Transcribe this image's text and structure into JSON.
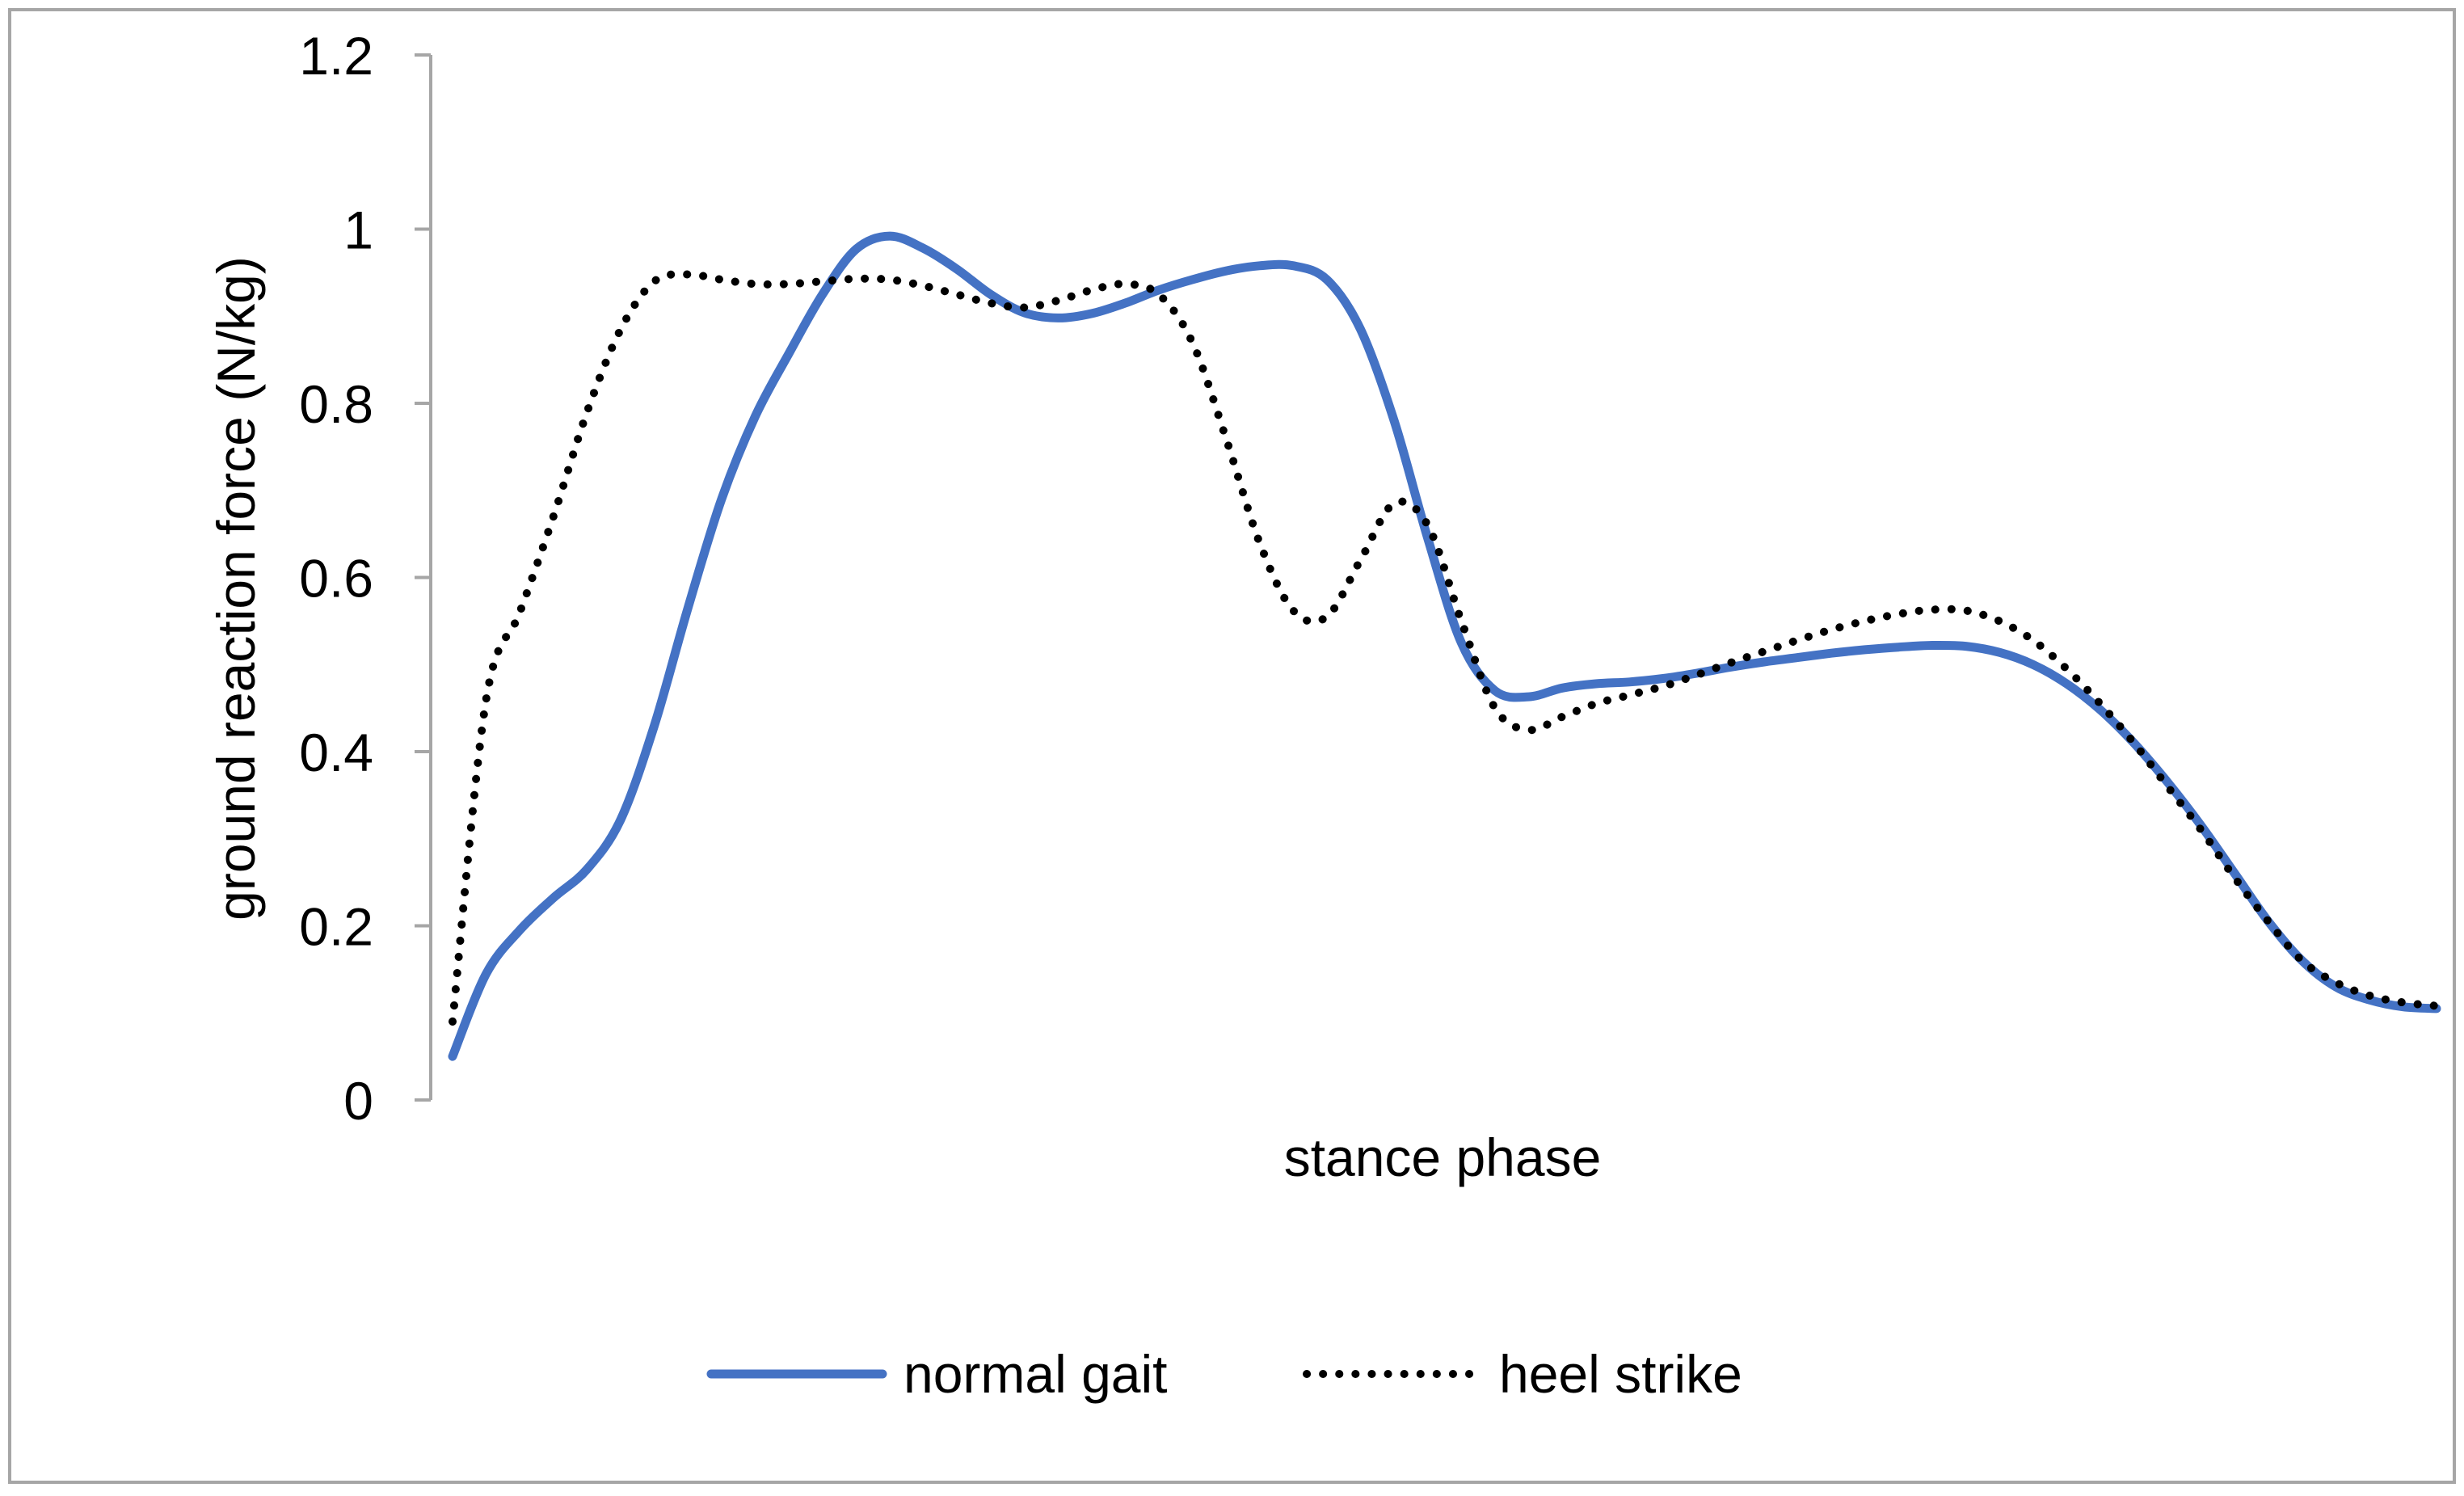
{
  "chart_data": {
    "type": "line",
    "title": "",
    "xlabel": "stance phase",
    "ylabel": "ground reaction force (N/kg)",
    "ylim": [
      0,
      1.2
    ],
    "yticks": [
      "0",
      "0.2",
      "0.4",
      "0.6",
      "0.8",
      "1",
      "1.2"
    ],
    "grid": false,
    "legend_position": "bottom",
    "x": [
      0,
      1,
      2,
      3,
      4,
      5,
      6,
      7,
      8,
      9,
      10,
      11,
      12,
      13,
      14,
      15,
      16,
      17,
      18,
      19,
      20,
      21,
      22,
      23,
      24,
      25,
      26,
      27,
      28,
      29,
      30,
      31,
      32,
      33,
      34,
      35,
      36,
      37,
      38,
      39,
      40,
      41,
      42,
      43,
      44,
      45,
      46,
      47,
      48,
      49,
      50,
      51,
      52,
      53,
      54,
      55,
      56,
      57,
      58,
      59
    ],
    "series": [
      {
        "name": "normal gait",
        "color": "#4472C4",
        "style": "solid",
        "values": [
          0.05,
          0.145,
          0.195,
          0.232,
          0.265,
          0.322,
          0.43,
          0.565,
          0.69,
          0.785,
          0.857,
          0.925,
          0.977,
          0.992,
          0.978,
          0.954,
          0.925,
          0.904,
          0.898,
          0.903,
          0.915,
          0.93,
          0.942,
          0.952,
          0.958,
          0.958,
          0.942,
          0.885,
          0.78,
          0.645,
          0.525,
          0.47,
          0.463,
          0.473,
          0.478,
          0.48,
          0.484,
          0.49,
          0.497,
          0.503,
          0.508,
          0.513,
          0.517,
          0.52,
          0.522,
          0.521,
          0.514,
          0.5,
          0.478,
          0.448,
          0.41,
          0.365,
          0.315,
          0.26,
          0.205,
          0.16,
          0.13,
          0.115,
          0.107,
          0.105
        ]
      },
      {
        "name": "heel strike",
        "color": "#000000",
        "style": "dotted",
        "values": [
          0.09,
          0.46,
          0.56,
          0.67,
          0.79,
          0.885,
          0.94,
          0.948,
          0.942,
          0.937,
          0.937,
          0.94,
          0.943,
          0.942,
          0.935,
          0.925,
          0.915,
          0.91,
          0.918,
          0.93,
          0.937,
          0.925,
          0.87,
          0.76,
          0.64,
          0.562,
          0.555,
          0.62,
          0.685,
          0.66,
          0.55,
          0.45,
          0.425,
          0.44,
          0.455,
          0.465,
          0.475,
          0.488,
          0.502,
          0.515,
          0.528,
          0.54,
          0.55,
          0.558,
          0.563,
          0.562,
          0.55,
          0.528,
          0.495,
          0.455,
          0.41,
          0.36,
          0.31,
          0.255,
          0.205,
          0.16,
          0.135,
          0.12,
          0.112,
          0.108
        ]
      }
    ]
  }
}
